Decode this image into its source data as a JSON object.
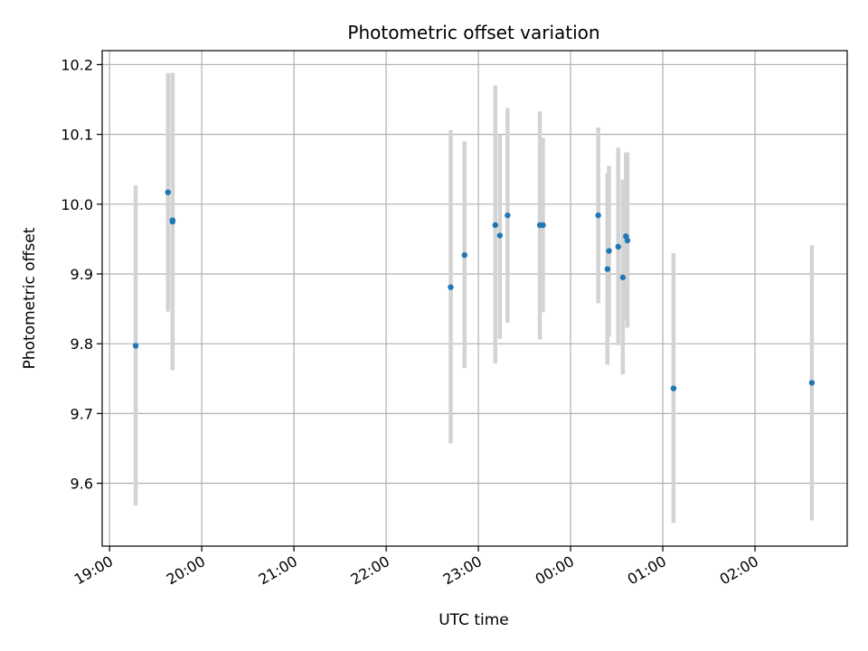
{
  "chart_data": {
    "type": "scatter",
    "title": "Photometric offset variation",
    "xlabel": "UTC time",
    "ylabel": "Photometric offset",
    "x_axis": {
      "kind": "time",
      "start": "19:00",
      "tick_labels": [
        "19:00",
        "20:00",
        "21:00",
        "22:00",
        "23:00",
        "00:00",
        "01:00",
        "02:00"
      ],
      "tick_hours": [
        0,
        1,
        2,
        3,
        4,
        5,
        6,
        7
      ],
      "range_hours": [
        -0.08,
        8.0
      ]
    },
    "y_axis": {
      "tick_labels": [
        "9.6",
        "9.7",
        "9.8",
        "9.9",
        "10.0",
        "10.1",
        "10.2"
      ],
      "tick_values": [
        9.6,
        9.7,
        9.8,
        9.9,
        10.0,
        10.1,
        10.2
      ],
      "ylim": [
        9.51,
        10.22
      ]
    },
    "grid": true,
    "colors": {
      "points": "#1f77b4",
      "errorbars": "#d3d3d3",
      "grid": "#b0b0b0"
    },
    "points": [
      {
        "time": "19:17",
        "y": 9.797,
        "yerr_low": 9.568,
        "yerr_high": 10.027
      },
      {
        "time": "19:38",
        "y": 10.017,
        "yerr_low": 9.846,
        "yerr_high": 10.188
      },
      {
        "time": "19:41",
        "y": 9.977,
        "yerr_low": 9.762,
        "yerr_high": 10.188
      },
      {
        "time": "19:41",
        "y": 9.975,
        "yerr_low": 9.762,
        "yerr_high": 10.188
      },
      {
        "time": "22:42",
        "y": 9.881,
        "yerr_low": 9.657,
        "yerr_high": 10.106
      },
      {
        "time": "22:51",
        "y": 9.927,
        "yerr_low": 9.765,
        "yerr_high": 10.09
      },
      {
        "time": "23:11",
        "y": 9.97,
        "yerr_low": 9.772,
        "yerr_high": 10.17
      },
      {
        "time": "23:14",
        "y": 9.955,
        "yerr_low": 9.807,
        "yerr_high": 10.1
      },
      {
        "time": "23:19",
        "y": 9.984,
        "yerr_low": 9.83,
        "yerr_high": 10.138
      },
      {
        "time": "23:40",
        "y": 9.97,
        "yerr_low": 9.806,
        "yerr_high": 10.133
      },
      {
        "time": "23:42",
        "y": 9.97,
        "yerr_low": 9.845,
        "yerr_high": 10.095
      },
      {
        "time": "00:18",
        "y": 9.984,
        "yerr_low": 9.858,
        "yerr_high": 10.11
      },
      {
        "time": "00:24",
        "y": 9.907,
        "yerr_low": 9.77,
        "yerr_high": 10.045
      },
      {
        "time": "00:25",
        "y": 9.933,
        "yerr_low": 9.811,
        "yerr_high": 10.055
      },
      {
        "time": "00:31",
        "y": 9.939,
        "yerr_low": 9.798,
        "yerr_high": 10.081
      },
      {
        "time": "00:34",
        "y": 9.895,
        "yerr_low": 9.756,
        "yerr_high": 10.035
      },
      {
        "time": "00:36",
        "y": 9.954,
        "yerr_low": 9.834,
        "yerr_high": 10.074
      },
      {
        "time": "00:37",
        "y": 9.948,
        "yerr_low": 9.823,
        "yerr_high": 10.074
      },
      {
        "time": "01:07",
        "y": 9.736,
        "yerr_low": 9.543,
        "yerr_high": 9.93
      },
      {
        "time": "02:37",
        "y": 9.744,
        "yerr_low": 9.547,
        "yerr_high": 9.941
      }
    ]
  }
}
